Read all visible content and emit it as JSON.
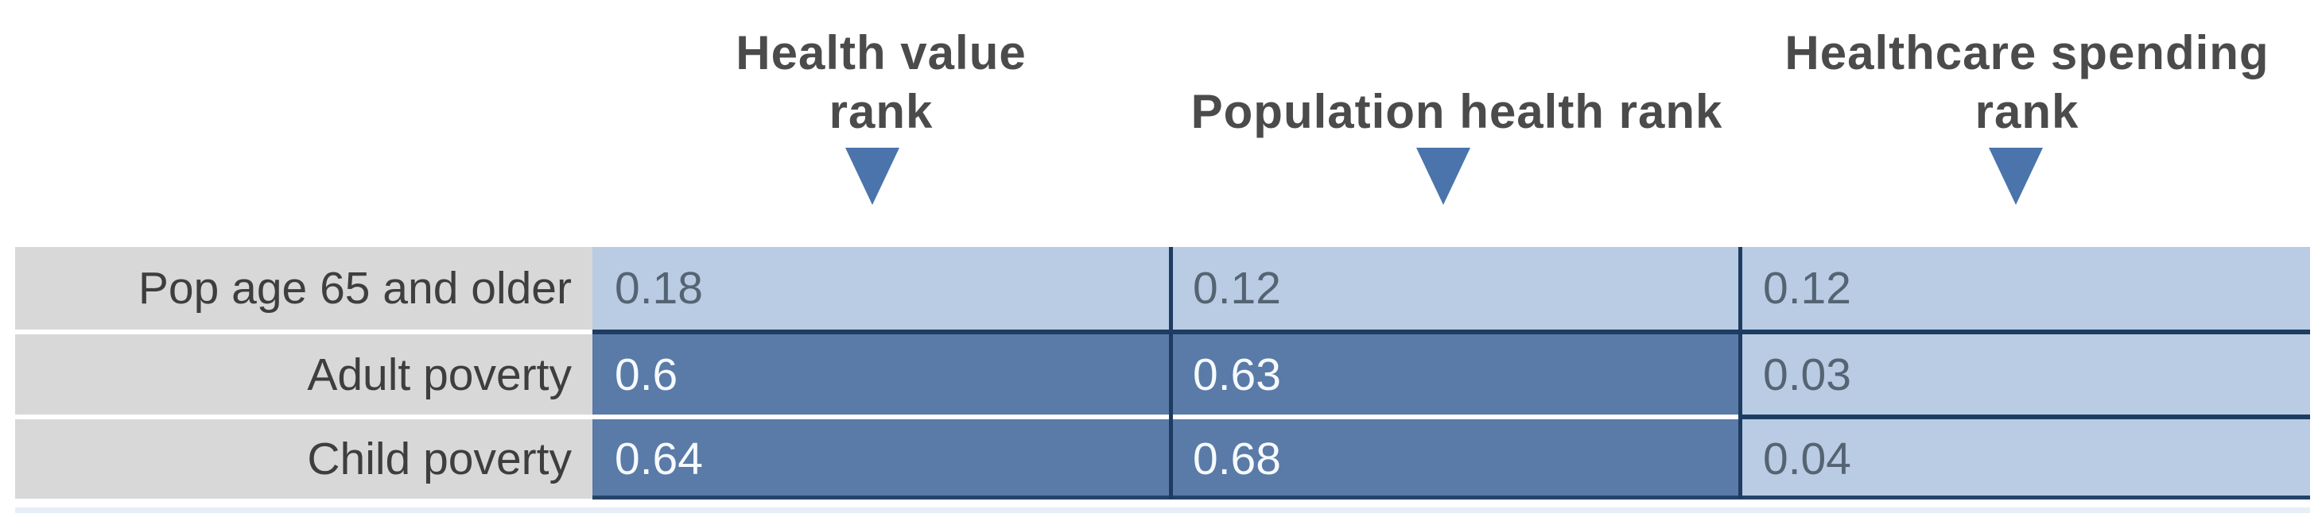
{
  "headers": [
    {
      "label": "Health value rank"
    },
    {
      "label": "Population health rank"
    },
    {
      "label": "Healthcare spending rank"
    }
  ],
  "marker": {
    "icon": "triangle-down-icon",
    "color": "#4a74ab"
  },
  "table": {
    "rows": [
      {
        "label": "Pop age 65 and older",
        "values": [
          "0.18",
          "0.12",
          "0.12"
        ]
      },
      {
        "label": "Adult poverty",
        "values": [
          "0.6",
          "0.63",
          "0.03"
        ]
      },
      {
        "label": "Child poverty",
        "values": [
          "0.64",
          "0.68",
          "0.04"
        ]
      }
    ]
  },
  "colors": {
    "cell_light_blue": "#b9cce4",
    "cell_dark_blue": "#5a7aa8",
    "label_gray": "#d8d8d8",
    "separator_navy": "#1e3c61",
    "header_text": "#4b4b4b",
    "label_text": "#3e3e3e",
    "light_cell_text": "#556473",
    "dark_cell_text": "#f6fafe"
  },
  "chart_data": {
    "type": "heatmap",
    "columns": [
      "Health value rank",
      "Population health rank",
      "Healthcare spending rank"
    ],
    "rows": [
      "Pop age 65 and older",
      "Adult poverty",
      "Child poverty"
    ],
    "values": [
      [
        0.18,
        0.12,
        0.12
      ],
      [
        0.6,
        0.63,
        0.03
      ],
      [
        0.64,
        0.68,
        0.04
      ]
    ],
    "value_range": [
      0,
      1
    ],
    "shading_rule": "darker blue fill for larger values (>=0.6), light blue for smaller values",
    "legend_position": "none",
    "grid": "navy cell borders between data rows/columns; white gaps between gray row labels"
  }
}
